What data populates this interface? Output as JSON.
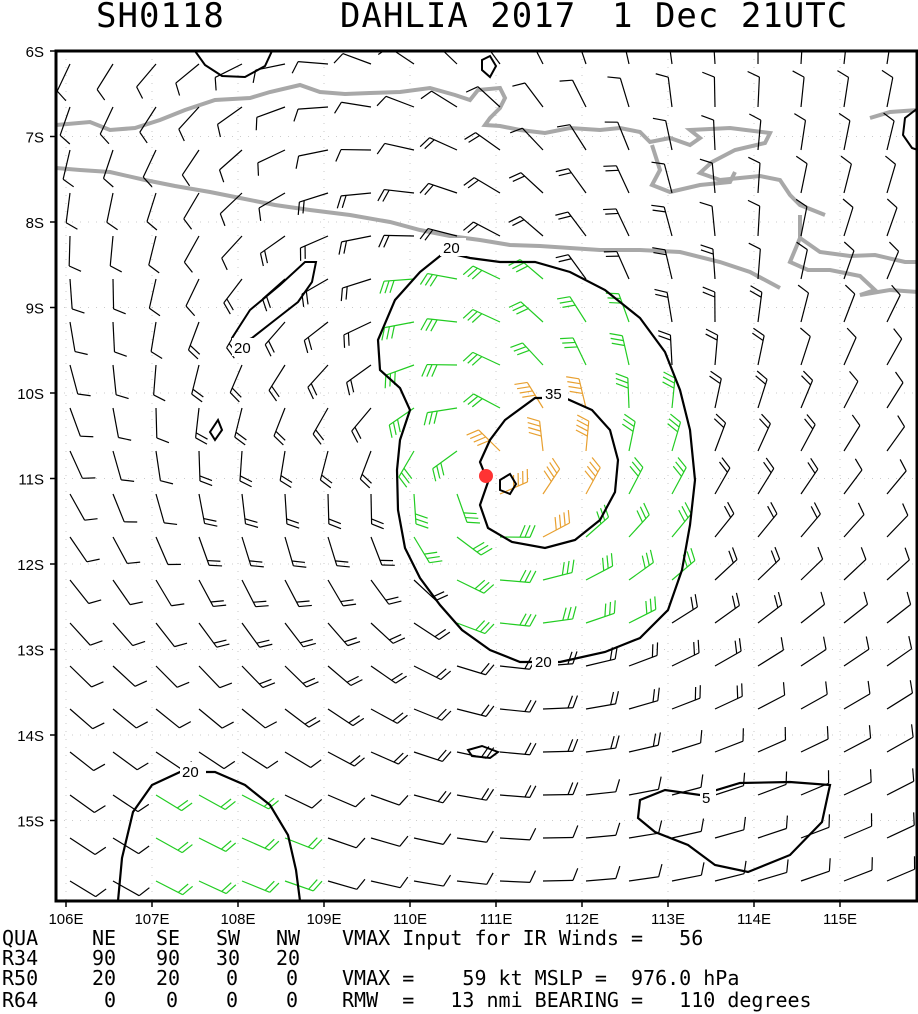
{
  "header": {
    "storm_id": "SH0118",
    "storm_name_year": "DAHLIA 2017",
    "datetime": "1 Dec 21UTC"
  },
  "map": {
    "lat_labels": [
      "6S",
      "7S",
      "8S",
      "9S",
      "10S",
      "11S",
      "12S",
      "13S",
      "14S",
      "15S"
    ],
    "lon_labels": [
      "106E",
      "107E",
      "108E",
      "109E",
      "110E",
      "111E",
      "112E",
      "113E",
      "114E",
      "115E"
    ],
    "contour_labels": [
      "20",
      "20",
      "35",
      "20",
      "20",
      "5"
    ],
    "colors": {
      "low_wind": "#000000",
      "r34_wind": "#22cc22",
      "r50_wind": "#e8a030",
      "center": "#ff3333",
      "land": "#a8a8a8"
    }
  },
  "table": {
    "header": [
      "QUA",
      "NE",
      "SE",
      "SW",
      "NW"
    ],
    "rows": [
      {
        "label": "R34",
        "values": [
          "90",
          "90",
          "30",
          "20"
        ]
      },
      {
        "label": "R50",
        "values": [
          "20",
          "20",
          "0",
          "0"
        ]
      },
      {
        "label": "R64",
        "values": [
          "0",
          "0",
          "0",
          "0"
        ]
      }
    ],
    "line1": "VMAX Input for IR Winds =   56",
    "line3": "VMAX =    59 kt MSLP =  976.0 hPa",
    "line4": "RMW  =   13 nmi BEARING =   110 degrees"
  }
}
